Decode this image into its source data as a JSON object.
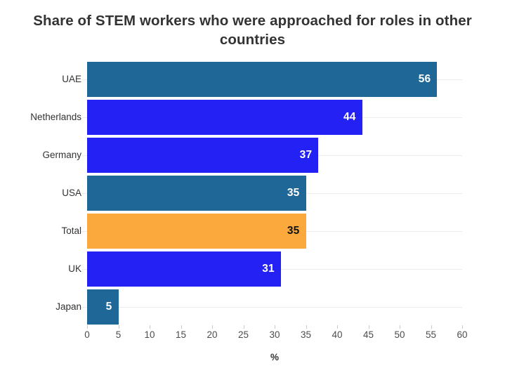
{
  "chart_data": {
    "type": "bar",
    "orientation": "horizontal",
    "title": "Share of STEM workers who were approached for roles in other countries",
    "categories": [
      "UAE",
      "Netherlands",
      "Germany",
      "USA",
      "Total",
      "UK",
      "Japan"
    ],
    "values": [
      56,
      44,
      37,
      35,
      35,
      31,
      5
    ],
    "bar_colors": [
      "#1F6796",
      "#2321F3",
      "#2321F3",
      "#1F6796",
      "#FBA93C",
      "#2321F3",
      "#1F6796"
    ],
    "value_label_colors": [
      "#ffffff",
      "#ffffff",
      "#ffffff",
      "#ffffff",
      "#111111",
      "#ffffff",
      "#ffffff"
    ],
    "xlabel": "%",
    "xlim": [
      0,
      60
    ],
    "xticks": [
      0,
      5,
      10,
      15,
      20,
      25,
      30,
      35,
      40,
      45,
      50,
      55,
      60
    ],
    "grid": "horizontal-row-lines",
    "legend": "none"
  },
  "colors": {
    "teal": "#1F6796",
    "blue": "#2321F3",
    "orange": "#FBA93C",
    "row_line": "#ececec",
    "tick_mark": "#c9c9c9",
    "text": "#333333"
  }
}
